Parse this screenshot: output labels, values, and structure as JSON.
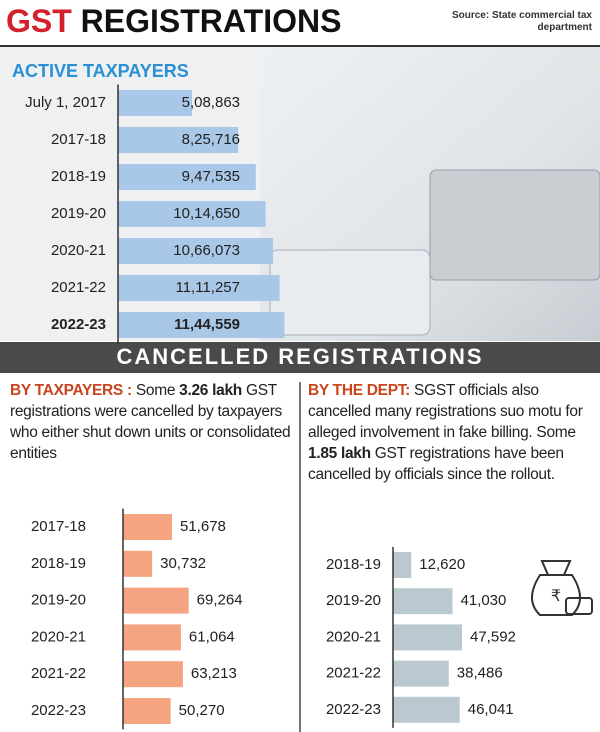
{
  "header": {
    "title": [
      "GST",
      "REGISTRATIONS"
    ],
    "source": "Source: State commercial tax department"
  },
  "section_title": "CANCELLED REGISTRATIONS",
  "notes": [
    [
      "BY TAXPAYERS :",
      " Some ",
      "3.26 lakh",
      " GST registrations were cancelled by taxpayers who either shut down units or consolidated entities"
    ],
    [
      "BY THE DEPT:",
      " SGST officials also cancelled many registrations suo motu for alleged involvement in fake billing. Some ",
      "1.85 lakh",
      " GST registrations have been cancelled by officials since the rollout."
    ]
  ],
  "chart_data": [
    {
      "type": "bar",
      "title": "ACTIVE TAXPAYERS",
      "categories": [
        "July 1, 2017",
        "2017-18",
        "2018-19",
        "2019-20",
        "2020-21",
        "2021-22",
        "2022-23"
      ],
      "values": [
        508863,
        825716,
        947535,
        1014650,
        1066073,
        1111257,
        1144559
      ],
      "value_labels": [
        "5,08,863",
        "8,25,716",
        "9,47,535",
        "10,14,650",
        "10,66,073",
        "11,11,257",
        "11,44,559"
      ],
      "color": "#a9c8e8"
    },
    {
      "type": "bar",
      "categories": [
        "2017-18",
        "2018-19",
        "2019-20",
        "2020-21",
        "2021-22",
        "2022-23"
      ],
      "values": [
        51678,
        30732,
        69264,
        61064,
        63213,
        50270
      ],
      "value_labels": [
        "51,678",
        "30,732",
        "69,264",
        "61,064",
        "63,213",
        "50,270"
      ],
      "color": "#f5a482"
    },
    {
      "type": "bar",
      "categories": [
        "2018-19",
        "2019-20",
        "2020-21",
        "2021-22",
        "2022-23"
      ],
      "values": [
        12620,
        41030,
        47592,
        38486,
        46041
      ],
      "value_labels": [
        "12,620",
        "41,030",
        "47,592",
        "38,486",
        "46,041"
      ],
      "color": "#b9c9cf"
    }
  ]
}
